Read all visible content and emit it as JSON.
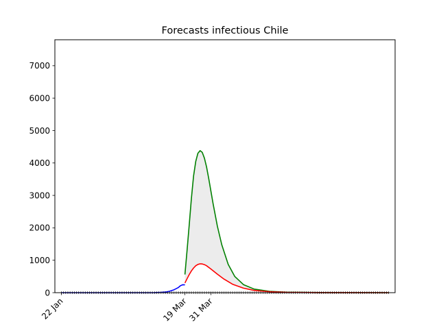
{
  "chart_data": {
    "type": "line",
    "title": "Forecasts infectious Chile",
    "xlabel": "",
    "ylabel": "",
    "ylim": [
      0,
      7800
    ],
    "xlim": [
      "2020-01-19",
      "2020-06-24"
    ],
    "y_ticks": [
      0,
      1000,
      2000,
      3000,
      4000,
      5000,
      6000,
      7000
    ],
    "x_ticks": [
      {
        "date": "2020-01-22",
        "label": "22 Jan"
      },
      {
        "date": "2020-03-19",
        "label": "19 Mar"
      },
      {
        "date": "2020-03-31",
        "label": "31 Mar"
      }
    ],
    "minor_tick_range": [
      "2020-01-22",
      "2020-06-21"
    ],
    "grid": false,
    "legend": "none",
    "series": [
      {
        "role": "observed",
        "color": "#0000ff",
        "points": [
          [
            "2020-01-22",
            0
          ],
          [
            "2020-02-15",
            0
          ],
          [
            "2020-03-01",
            0
          ],
          [
            "2020-03-05",
            2
          ],
          [
            "2020-03-08",
            8
          ],
          [
            "2020-03-10",
            20
          ],
          [
            "2020-03-12",
            45
          ],
          [
            "2020-03-14",
            90
          ],
          [
            "2020-03-16",
            160
          ],
          [
            "2020-03-17",
            215
          ],
          [
            "2020-03-18",
            245
          ],
          [
            "2020-03-19",
            240
          ]
        ]
      },
      {
        "role": "forecast-upper",
        "color": "#008000",
        "points": [
          [
            "2020-03-19",
            560
          ],
          [
            "2020-03-20",
            1300
          ],
          [
            "2020-03-21",
            2100
          ],
          [
            "2020-03-22",
            2900
          ],
          [
            "2020-03-23",
            3600
          ],
          [
            "2020-03-24",
            4050
          ],
          [
            "2020-03-25",
            4300
          ],
          [
            "2020-03-26",
            4380
          ],
          [
            "2020-03-27",
            4330
          ],
          [
            "2020-03-28",
            4150
          ],
          [
            "2020-03-29",
            3880
          ],
          [
            "2020-03-30",
            3520
          ],
          [
            "2020-04-01",
            2750
          ],
          [
            "2020-04-03",
            2050
          ],
          [
            "2020-04-05",
            1480
          ],
          [
            "2020-04-08",
            870
          ],
          [
            "2020-04-11",
            500
          ],
          [
            "2020-04-15",
            250
          ],
          [
            "2020-04-20",
            110
          ],
          [
            "2020-04-27",
            40
          ],
          [
            "2020-05-05",
            15
          ],
          [
            "2020-05-20",
            4
          ],
          [
            "2020-06-21",
            0
          ]
        ]
      },
      {
        "role": "forecast-lower",
        "color": "#ff0000",
        "points": [
          [
            "2020-03-19",
            300
          ],
          [
            "2020-03-20",
            430
          ],
          [
            "2020-03-21",
            560
          ],
          [
            "2020-03-22",
            670
          ],
          [
            "2020-03-23",
            760
          ],
          [
            "2020-03-24",
            830
          ],
          [
            "2020-03-25",
            870
          ],
          [
            "2020-03-26",
            890
          ],
          [
            "2020-03-27",
            885
          ],
          [
            "2020-03-28",
            865
          ],
          [
            "2020-03-29",
            830
          ],
          [
            "2020-03-31",
            730
          ],
          [
            "2020-04-03",
            570
          ],
          [
            "2020-04-06",
            420
          ],
          [
            "2020-04-10",
            260
          ],
          [
            "2020-04-15",
            140
          ],
          [
            "2020-04-20",
            70
          ],
          [
            "2020-04-27",
            30
          ],
          [
            "2020-05-05",
            10
          ],
          [
            "2020-05-20",
            3
          ],
          [
            "2020-06-21",
            0
          ]
        ]
      }
    ],
    "band": {
      "between": [
        "forecast-lower",
        "forecast-upper"
      ],
      "color": "#ececec"
    }
  }
}
